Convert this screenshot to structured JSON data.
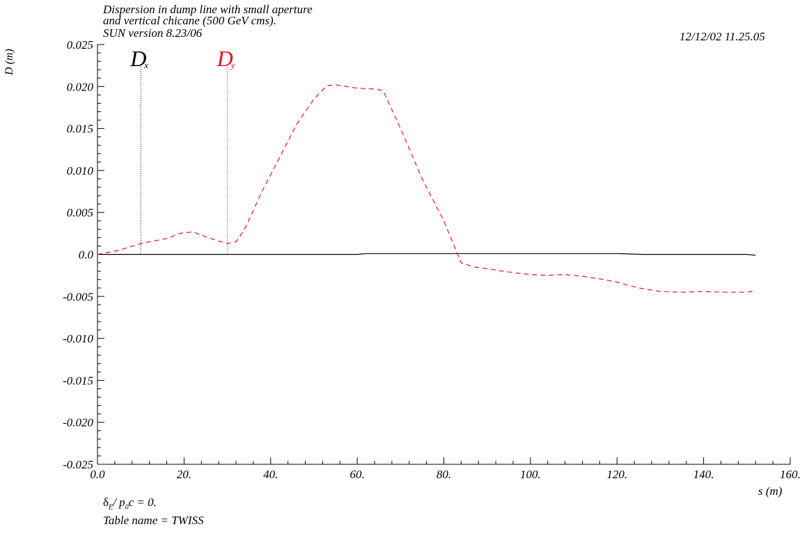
{
  "header": {
    "title_line1": "Dispersion in dump line with small aperture",
    "title_line2": "and vertical chicane (500 GeV cms).",
    "version": "SUN version 8.23/06",
    "timestamp": "12/12/02  11.25.05"
  },
  "footer": {
    "delta_symbol": "δ",
    "delta_sub": "E",
    "delta_mid": "/ p",
    "delta_sub0": "0",
    "delta_tail": "c  =  0.",
    "table_name": "Table name = TWISS"
  },
  "colors": {
    "dx": "#000000",
    "dy": "#e8141c"
  },
  "chart_data": {
    "type": "line",
    "xlabel": "s (m)",
    "ylabel": "D (m)",
    "xlim": [
      0,
      160
    ],
    "ylim": [
      -0.025,
      0.025
    ],
    "x_ticks": [
      "0.0",
      "20.",
      "40.",
      "60.",
      "80.",
      "100.",
      "120.",
      "140.",
      "160."
    ],
    "y_ticks": [
      "0.025",
      "0.020",
      "0.015",
      "0.010",
      "0.005",
      "0.0",
      "-0.005",
      "-0.010",
      "-0.015",
      "-0.020",
      "-0.025"
    ],
    "series": [
      {
        "name": "Dx",
        "label_main": "D",
        "label_sub": "x",
        "label_at_s": 10,
        "style": "solid",
        "x": [
          0,
          20,
          40,
          60,
          62,
          80,
          100,
          120,
          126,
          140,
          150,
          152
        ],
        "y": [
          0,
          0,
          0,
          0,
          0.0001,
          0.0001,
          0.0001,
          0.0001,
          0,
          0,
          0,
          -0.0001
        ]
      },
      {
        "name": "Dy",
        "label_main": "D",
        "label_sub": "y",
        "label_at_s": 30,
        "style": "dashed",
        "x": [
          0,
          5,
          10,
          13,
          16,
          19,
          22,
          25,
          28,
          30,
          32,
          34,
          38,
          42,
          46,
          50,
          53,
          55,
          60,
          64,
          66,
          70,
          75,
          80,
          84,
          87,
          90,
          95,
          100,
          104,
          108,
          112,
          116,
          120,
          125,
          130,
          135,
          140,
          145,
          150,
          152
        ],
        "y": [
          0,
          0.0005,
          0.0013,
          0.0016,
          0.0019,
          0.0025,
          0.0027,
          0.0021,
          0.0016,
          0.0013,
          0.0015,
          0.003,
          0.0075,
          0.0115,
          0.0155,
          0.0185,
          0.0201,
          0.0202,
          0.0198,
          0.0197,
          0.0195,
          0.015,
          0.009,
          0.004,
          -0.001,
          -0.0015,
          -0.0017,
          -0.0021,
          -0.0024,
          -0.0025,
          -0.0024,
          -0.0026,
          -0.0029,
          -0.0033,
          -0.004,
          -0.0044,
          -0.0045,
          -0.0044,
          -0.0045,
          -0.0045,
          -0.0043
        ]
      }
    ]
  }
}
